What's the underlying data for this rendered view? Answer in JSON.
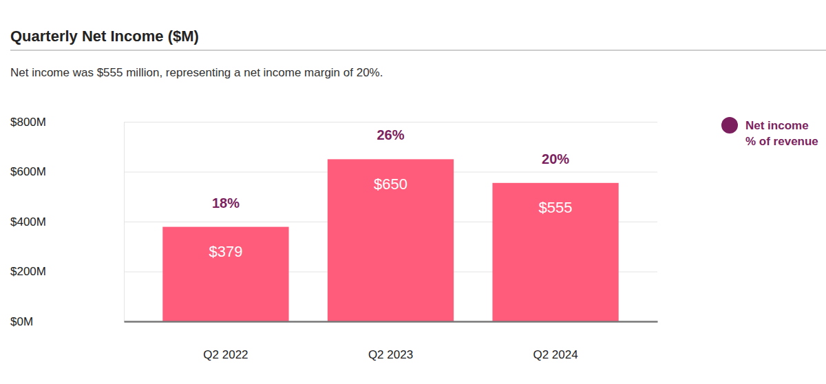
{
  "chart_data": {
    "type": "bar",
    "title": "Quarterly Net Income ($M)",
    "subtitle": "Net income was $555 million, representing a net income margin of 20%.",
    "categories": [
      "Q2 2022",
      "Q2 2023",
      "Q2 2024"
    ],
    "values": [
      379,
      650,
      555
    ],
    "value_labels": [
      "$379",
      "$650",
      "$555"
    ],
    "data_labels": true,
    "color": "#ff5c7c",
    "ylim": [
      0,
      800
    ],
    "yticks": [
      {
        "value": 0,
        "label": "$0M"
      },
      {
        "value": 200,
        "label": "$200M"
      },
      {
        "value": 400,
        "label": "$400M"
      },
      {
        "value": 600,
        "label": "$600M"
      },
      {
        "value": 800,
        "label": "$800M"
      }
    ],
    "grid": true,
    "legend": "top-right",
    "margin": {
      "name": "Net income % of revenue",
      "color": "#7c1f5e",
      "values": [
        18,
        26,
        20
      ],
      "value_labels": [
        "18%",
        "26%",
        "20%"
      ]
    }
  }
}
